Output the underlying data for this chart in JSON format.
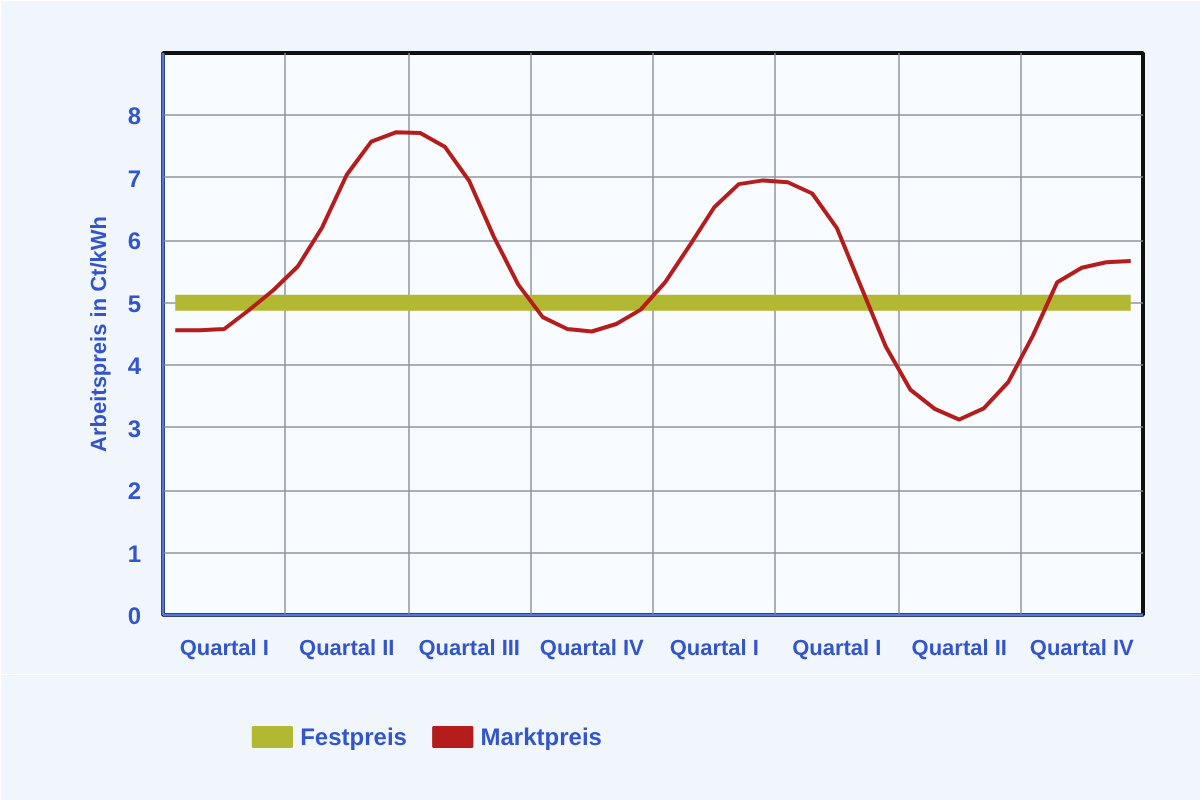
{
  "chart_data": {
    "type": "line",
    "ylabel": "Arbeitspreis in Ct/kWh",
    "categories": [
      null,
      null,
      "Quartal I",
      null,
      null,
      null,
      null,
      "Quartal II",
      null,
      null,
      null,
      null,
      "Quartal III",
      null,
      null,
      null,
      null,
      "Quartal IV",
      null,
      null,
      null,
      null,
      "Quartal I",
      null,
      null,
      null,
      null,
      "Quartal I",
      null,
      null,
      null,
      null,
      "Quartal II",
      null,
      null,
      null,
      null,
      "Quartal IV",
      null,
      null
    ],
    "ylim": [
      0,
      9
    ],
    "yticks": [
      0,
      1,
      2,
      3,
      4,
      5,
      6,
      7,
      8
    ],
    "grid": true,
    "legend": "bottom",
    "series": [
      {
        "name": "Festpreis",
        "color": "#b2b832",
        "values": [
          5,
          5,
          5,
          5,
          5,
          5,
          5,
          5,
          5,
          5,
          5,
          5,
          5,
          5,
          5,
          5,
          5,
          5,
          5,
          5,
          5,
          5,
          5,
          5,
          5,
          5,
          5,
          5,
          5,
          5,
          5,
          5,
          5,
          5,
          5,
          5,
          5,
          5,
          5,
          5
        ]
      },
      {
        "name": "Marktpreis",
        "color": "#b51c1c",
        "values": [
          4.56,
          4.56,
          4.58,
          4.88,
          5.2,
          5.58,
          6.21,
          7.05,
          7.58,
          7.73,
          7.72,
          7.5,
          6.95,
          6.06,
          5.29,
          4.77,
          4.58,
          4.54,
          4.66,
          4.89,
          5.33,
          5.92,
          6.53,
          6.9,
          6.96,
          6.93,
          6.75,
          6.2,
          5.25,
          4.3,
          3.61,
          3.3,
          3.13,
          3.31,
          3.73,
          4.47,
          5.33,
          5.56,
          5.65,
          5.67
        ]
      }
    ]
  }
}
